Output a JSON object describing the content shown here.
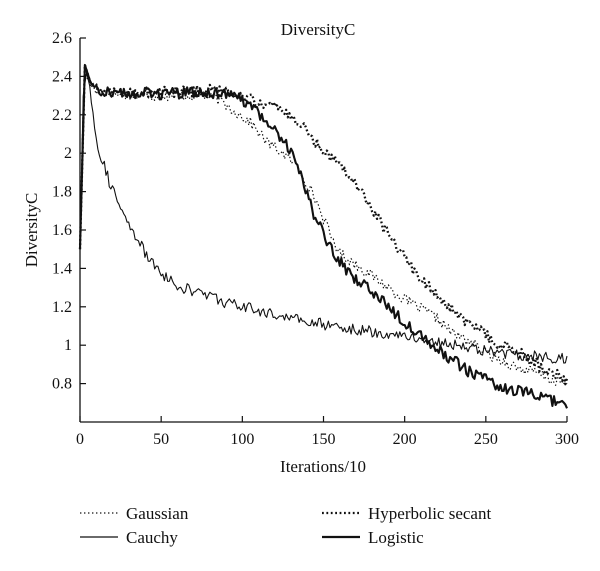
{
  "chart_data": {
    "type": "line",
    "title": "DiversityC",
    "xlabel": "Iterations/10",
    "ylabel": "DiversityC",
    "xlim": [
      0,
      300
    ],
    "ylim": [
      0.6,
      2.6
    ],
    "x_ticks": [
      "0",
      "50",
      "100",
      "150",
      "200",
      "250",
      "300"
    ],
    "y_ticks": [
      "0.8",
      "1",
      "1.2",
      "1.4",
      "1.6",
      "1.8",
      "2",
      "2.2",
      "2.4",
      "2.6"
    ],
    "grid": false,
    "legend_position": "bottom",
    "series": [
      {
        "name": "Gaussian",
        "style": "dotted-thin",
        "points": [
          [
            0,
            1.5
          ],
          [
            3,
            2.42
          ],
          [
            5,
            2.38
          ],
          [
            10,
            2.32
          ],
          [
            20,
            2.31
          ],
          [
            40,
            2.3
          ],
          [
            60,
            2.3
          ],
          [
            75,
            2.3
          ],
          [
            85,
            2.28
          ],
          [
            95,
            2.22
          ],
          [
            105,
            2.16
          ],
          [
            115,
            2.06
          ],
          [
            125,
            2.0
          ],
          [
            130,
            1.96
          ],
          [
            135,
            1.92
          ],
          [
            140,
            1.84
          ],
          [
            145,
            1.76
          ],
          [
            150,
            1.66
          ],
          [
            155,
            1.56
          ],
          [
            160,
            1.48
          ],
          [
            170,
            1.42
          ],
          [
            180,
            1.36
          ],
          [
            190,
            1.3
          ],
          [
            200,
            1.24
          ],
          [
            210,
            1.19
          ],
          [
            220,
            1.14
          ],
          [
            230,
            1.06
          ],
          [
            240,
            1.02
          ],
          [
            250,
            0.96
          ],
          [
            260,
            0.92
          ],
          [
            270,
            0.88
          ],
          [
            280,
            0.86
          ],
          [
            290,
            0.82
          ],
          [
            300,
            0.8
          ]
        ]
      },
      {
        "name": "Cauchy",
        "style": "solid-thin",
        "points": [
          [
            0,
            1.5
          ],
          [
            2,
            2.3
          ],
          [
            4,
            2.42
          ],
          [
            6,
            2.35
          ],
          [
            8,
            2.2
          ],
          [
            10,
            2.1
          ],
          [
            12,
            2.0
          ],
          [
            15,
            1.94
          ],
          [
            18,
            1.85
          ],
          [
            22,
            1.78
          ],
          [
            26,
            1.68
          ],
          [
            30,
            1.62
          ],
          [
            35,
            1.56
          ],
          [
            40,
            1.48
          ],
          [
            45,
            1.42
          ],
          [
            50,
            1.38
          ],
          [
            55,
            1.34
          ],
          [
            60,
            1.31
          ],
          [
            70,
            1.28
          ],
          [
            80,
            1.26
          ],
          [
            90,
            1.22
          ],
          [
            100,
            1.2
          ],
          [
            110,
            1.18
          ],
          [
            120,
            1.16
          ],
          [
            130,
            1.14
          ],
          [
            140,
            1.12
          ],
          [
            150,
            1.11
          ],
          [
            160,
            1.1
          ],
          [
            170,
            1.08
          ],
          [
            180,
            1.07
          ],
          [
            190,
            1.06
          ],
          [
            200,
            1.05
          ],
          [
            210,
            1.03
          ],
          [
            220,
            1.02
          ],
          [
            230,
            1.0
          ],
          [
            240,
            0.99
          ],
          [
            250,
            0.97
          ],
          [
            260,
            0.96
          ],
          [
            270,
            0.95
          ],
          [
            280,
            0.94
          ],
          [
            290,
            0.93
          ],
          [
            300,
            0.93
          ]
        ]
      },
      {
        "name": "Hyperbolic secant",
        "style": "dotted-thick",
        "points": [
          [
            0,
            1.5
          ],
          [
            3,
            2.46
          ],
          [
            6,
            2.38
          ],
          [
            10,
            2.33
          ],
          [
            30,
            2.32
          ],
          [
            60,
            2.32
          ],
          [
            80,
            2.33
          ],
          [
            95,
            2.31
          ],
          [
            105,
            2.28
          ],
          [
            115,
            2.26
          ],
          [
            125,
            2.22
          ],
          [
            135,
            2.16
          ],
          [
            145,
            2.06
          ],
          [
            155,
            1.98
          ],
          [
            165,
            1.9
          ],
          [
            175,
            1.78
          ],
          [
            185,
            1.64
          ],
          [
            195,
            1.52
          ],
          [
            205,
            1.4
          ],
          [
            215,
            1.3
          ],
          [
            225,
            1.22
          ],
          [
            235,
            1.14
          ],
          [
            245,
            1.08
          ],
          [
            255,
            1.02
          ],
          [
            265,
            0.98
          ],
          [
            275,
            0.94
          ],
          [
            285,
            0.88
          ],
          [
            295,
            0.84
          ],
          [
            300,
            0.8
          ]
        ]
      },
      {
        "name": "Logistic",
        "style": "solid-thick",
        "points": [
          [
            0,
            1.5
          ],
          [
            3,
            2.46
          ],
          [
            6,
            2.38
          ],
          [
            10,
            2.33
          ],
          [
            30,
            2.31
          ],
          [
            60,
            2.31
          ],
          [
            80,
            2.32
          ],
          [
            90,
            2.3
          ],
          [
            100,
            2.28
          ],
          [
            108,
            2.22
          ],
          [
            115,
            2.16
          ],
          [
            122,
            2.1
          ],
          [
            128,
            2.04
          ],
          [
            133,
            1.96
          ],
          [
            137,
            1.86
          ],
          [
            141,
            1.76
          ],
          [
            145,
            1.66
          ],
          [
            150,
            1.58
          ],
          [
            155,
            1.5
          ],
          [
            160,
            1.44
          ],
          [
            165,
            1.38
          ],
          [
            170,
            1.34
          ],
          [
            180,
            1.28
          ],
          [
            190,
            1.2
          ],
          [
            200,
            1.12
          ],
          [
            210,
            1.06
          ],
          [
            220,
            0.98
          ],
          [
            230,
            0.92
          ],
          [
            240,
            0.86
          ],
          [
            250,
            0.82
          ],
          [
            260,
            0.78
          ],
          [
            270,
            0.76
          ],
          [
            280,
            0.74
          ],
          [
            290,
            0.71
          ],
          [
            300,
            0.69
          ]
        ]
      }
    ]
  }
}
